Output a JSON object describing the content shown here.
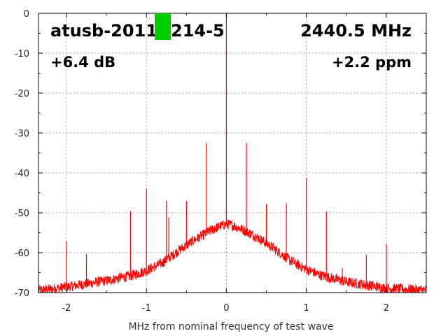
{
  "chart_data": {
    "type": "line",
    "title": "",
    "xlabel": "MHz from nominal frequency of test wave",
    "ylabel": "",
    "xlim": [
      -2.35,
      2.5
    ],
    "ylim": [
      -70,
      0
    ],
    "x_ticks": [
      -2,
      -1,
      0,
      1,
      2
    ],
    "y_ticks": [
      0,
      -10,
      -20,
      -30,
      -40,
      -50,
      -60,
      -70
    ],
    "grid": true,
    "annotations": {
      "device": "atusb-2011",
      "device_suffix": "214-5",
      "frequency": "2440.5 MHz",
      "gain": "+6.4 dB",
      "offset": "+2.2 ppm"
    },
    "colors": {
      "trace": "#ff0000",
      "marker": "#00cc00",
      "annotation_text": "#000000",
      "annotation_red": "#ff0000"
    },
    "series": [
      {
        "baseline": [
          [
            -2.35,
            -69.5
          ],
          [
            -2.0,
            -68.6
          ],
          [
            -1.5,
            -67.0
          ],
          [
            -1.2,
            -65.8
          ],
          [
            -1.0,
            -64.5
          ],
          [
            -0.8,
            -62.5
          ],
          [
            -0.6,
            -59.5
          ],
          [
            -0.4,
            -56.8
          ],
          [
            -0.2,
            -54.5
          ],
          [
            -0.1,
            -53.5
          ],
          [
            0.0,
            -52.8
          ],
          [
            0.1,
            -53.3
          ],
          [
            0.2,
            -54.2
          ],
          [
            0.4,
            -56.3
          ],
          [
            0.6,
            -59.0
          ],
          [
            0.8,
            -62.0
          ],
          [
            1.0,
            -64.2
          ],
          [
            1.2,
            -65.8
          ],
          [
            1.5,
            -67.3
          ],
          [
            2.0,
            -68.9
          ],
          [
            2.5,
            -69.4
          ]
        ],
        "spurs": [
          [
            0.0,
            0
          ],
          [
            -0.25,
            -32.5
          ],
          [
            0.25,
            -32.5
          ],
          [
            -1.0,
            -44.0
          ],
          [
            1.0,
            -41.2
          ],
          [
            -1.2,
            -49.6
          ],
          [
            1.25,
            -49.6
          ],
          [
            -0.75,
            -47.0
          ],
          [
            -0.5,
            -47.0
          ],
          [
            0.5,
            -47.8
          ],
          [
            0.75,
            -47.6
          ],
          [
            -2.0,
            -57.0
          ],
          [
            -1.75,
            -60.3
          ],
          [
            1.75,
            -60.5
          ],
          [
            2.0,
            -57.8
          ],
          [
            -0.72,
            -51.2
          ],
          [
            1.45,
            -63.8
          ],
          [
            -0.15,
            -53.2
          ],
          [
            0.1,
            -52.6
          ]
        ]
      }
    ]
  }
}
